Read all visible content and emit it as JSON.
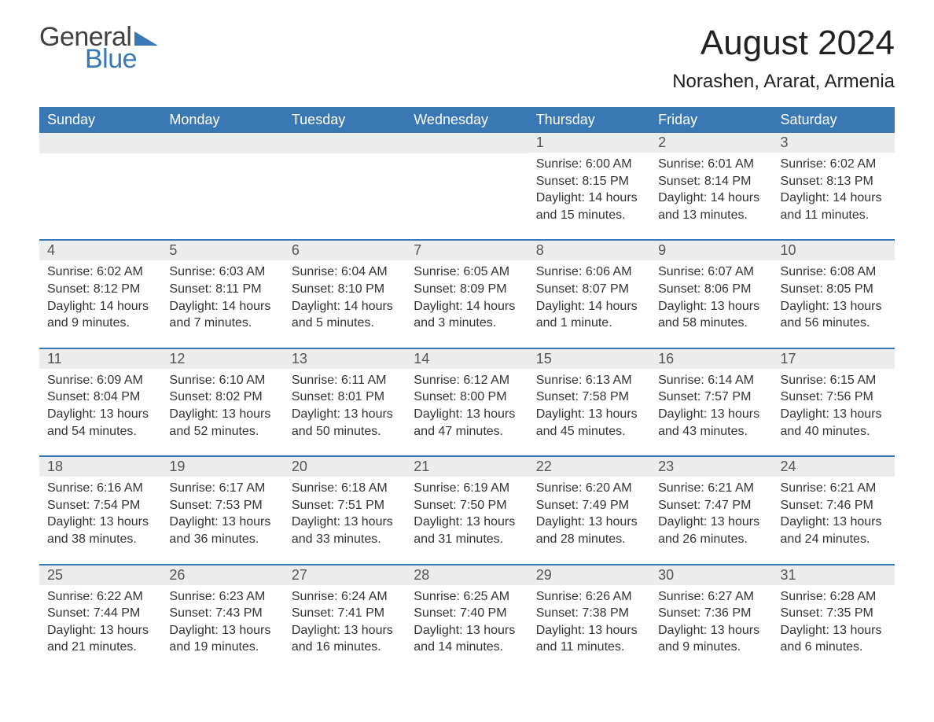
{
  "brand": {
    "general": "General",
    "blue": "Blue",
    "tri_color": "#3a78b5"
  },
  "header": {
    "month_title": "August 2024",
    "location": "Norashen, Ararat, Armenia"
  },
  "colors": {
    "header_bg": "#3a78b5",
    "header_text": "#ffffff",
    "daynum_bg": "#ececec",
    "row_border": "#3a78b5",
    "body_text": "#333333",
    "page_bg": "#ffffff"
  },
  "typography": {
    "month_title_fontsize": 44,
    "location_fontsize": 24,
    "dow_fontsize": 18,
    "daynum_fontsize": 18,
    "body_fontsize": 16,
    "logo_fontsize": 34
  },
  "days_of_week": [
    "Sunday",
    "Monday",
    "Tuesday",
    "Wednesday",
    "Thursday",
    "Friday",
    "Saturday"
  ],
  "weeks": [
    [
      {
        "day": null
      },
      {
        "day": null
      },
      {
        "day": null
      },
      {
        "day": null
      },
      {
        "day": "1",
        "sunrise": "Sunrise: 6:00 AM",
        "sunset": "Sunset: 8:15 PM",
        "daylight": "Daylight: 14 hours and 15 minutes."
      },
      {
        "day": "2",
        "sunrise": "Sunrise: 6:01 AM",
        "sunset": "Sunset: 8:14 PM",
        "daylight": "Daylight: 14 hours and 13 minutes."
      },
      {
        "day": "3",
        "sunrise": "Sunrise: 6:02 AM",
        "sunset": "Sunset: 8:13 PM",
        "daylight": "Daylight: 14 hours and 11 minutes."
      }
    ],
    [
      {
        "day": "4",
        "sunrise": "Sunrise: 6:02 AM",
        "sunset": "Sunset: 8:12 PM",
        "daylight": "Daylight: 14 hours and 9 minutes."
      },
      {
        "day": "5",
        "sunrise": "Sunrise: 6:03 AM",
        "sunset": "Sunset: 8:11 PM",
        "daylight": "Daylight: 14 hours and 7 minutes."
      },
      {
        "day": "6",
        "sunrise": "Sunrise: 6:04 AM",
        "sunset": "Sunset: 8:10 PM",
        "daylight": "Daylight: 14 hours and 5 minutes."
      },
      {
        "day": "7",
        "sunrise": "Sunrise: 6:05 AM",
        "sunset": "Sunset: 8:09 PM",
        "daylight": "Daylight: 14 hours and 3 minutes."
      },
      {
        "day": "8",
        "sunrise": "Sunrise: 6:06 AM",
        "sunset": "Sunset: 8:07 PM",
        "daylight": "Daylight: 14 hours and 1 minute."
      },
      {
        "day": "9",
        "sunrise": "Sunrise: 6:07 AM",
        "sunset": "Sunset: 8:06 PM",
        "daylight": "Daylight: 13 hours and 58 minutes."
      },
      {
        "day": "10",
        "sunrise": "Sunrise: 6:08 AM",
        "sunset": "Sunset: 8:05 PM",
        "daylight": "Daylight: 13 hours and 56 minutes."
      }
    ],
    [
      {
        "day": "11",
        "sunrise": "Sunrise: 6:09 AM",
        "sunset": "Sunset: 8:04 PM",
        "daylight": "Daylight: 13 hours and 54 minutes."
      },
      {
        "day": "12",
        "sunrise": "Sunrise: 6:10 AM",
        "sunset": "Sunset: 8:02 PM",
        "daylight": "Daylight: 13 hours and 52 minutes."
      },
      {
        "day": "13",
        "sunrise": "Sunrise: 6:11 AM",
        "sunset": "Sunset: 8:01 PM",
        "daylight": "Daylight: 13 hours and 50 minutes."
      },
      {
        "day": "14",
        "sunrise": "Sunrise: 6:12 AM",
        "sunset": "Sunset: 8:00 PM",
        "daylight": "Daylight: 13 hours and 47 minutes."
      },
      {
        "day": "15",
        "sunrise": "Sunrise: 6:13 AM",
        "sunset": "Sunset: 7:58 PM",
        "daylight": "Daylight: 13 hours and 45 minutes."
      },
      {
        "day": "16",
        "sunrise": "Sunrise: 6:14 AM",
        "sunset": "Sunset: 7:57 PM",
        "daylight": "Daylight: 13 hours and 43 minutes."
      },
      {
        "day": "17",
        "sunrise": "Sunrise: 6:15 AM",
        "sunset": "Sunset: 7:56 PM",
        "daylight": "Daylight: 13 hours and 40 minutes."
      }
    ],
    [
      {
        "day": "18",
        "sunrise": "Sunrise: 6:16 AM",
        "sunset": "Sunset: 7:54 PM",
        "daylight": "Daylight: 13 hours and 38 minutes."
      },
      {
        "day": "19",
        "sunrise": "Sunrise: 6:17 AM",
        "sunset": "Sunset: 7:53 PM",
        "daylight": "Daylight: 13 hours and 36 minutes."
      },
      {
        "day": "20",
        "sunrise": "Sunrise: 6:18 AM",
        "sunset": "Sunset: 7:51 PM",
        "daylight": "Daylight: 13 hours and 33 minutes."
      },
      {
        "day": "21",
        "sunrise": "Sunrise: 6:19 AM",
        "sunset": "Sunset: 7:50 PM",
        "daylight": "Daylight: 13 hours and 31 minutes."
      },
      {
        "day": "22",
        "sunrise": "Sunrise: 6:20 AM",
        "sunset": "Sunset: 7:49 PM",
        "daylight": "Daylight: 13 hours and 28 minutes."
      },
      {
        "day": "23",
        "sunrise": "Sunrise: 6:21 AM",
        "sunset": "Sunset: 7:47 PM",
        "daylight": "Daylight: 13 hours and 26 minutes."
      },
      {
        "day": "24",
        "sunrise": "Sunrise: 6:21 AM",
        "sunset": "Sunset: 7:46 PM",
        "daylight": "Daylight: 13 hours and 24 minutes."
      }
    ],
    [
      {
        "day": "25",
        "sunrise": "Sunrise: 6:22 AM",
        "sunset": "Sunset: 7:44 PM",
        "daylight": "Daylight: 13 hours and 21 minutes."
      },
      {
        "day": "26",
        "sunrise": "Sunrise: 6:23 AM",
        "sunset": "Sunset: 7:43 PM",
        "daylight": "Daylight: 13 hours and 19 minutes."
      },
      {
        "day": "27",
        "sunrise": "Sunrise: 6:24 AM",
        "sunset": "Sunset: 7:41 PM",
        "daylight": "Daylight: 13 hours and 16 minutes."
      },
      {
        "day": "28",
        "sunrise": "Sunrise: 6:25 AM",
        "sunset": "Sunset: 7:40 PM",
        "daylight": "Daylight: 13 hours and 14 minutes."
      },
      {
        "day": "29",
        "sunrise": "Sunrise: 6:26 AM",
        "sunset": "Sunset: 7:38 PM",
        "daylight": "Daylight: 13 hours and 11 minutes."
      },
      {
        "day": "30",
        "sunrise": "Sunrise: 6:27 AM",
        "sunset": "Sunset: 7:36 PM",
        "daylight": "Daylight: 13 hours and 9 minutes."
      },
      {
        "day": "31",
        "sunrise": "Sunrise: 6:28 AM",
        "sunset": "Sunset: 7:35 PM",
        "daylight": "Daylight: 13 hours and 6 minutes."
      }
    ]
  ]
}
